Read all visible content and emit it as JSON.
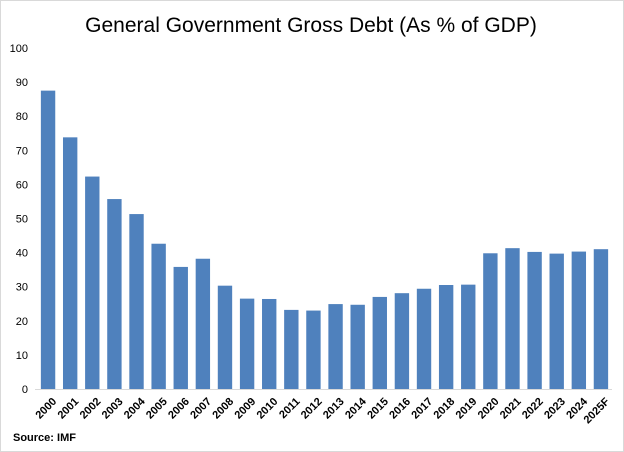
{
  "chart_data": {
    "type": "bar",
    "title": "General Government Gross Debt (As % of GDP)",
    "source": "Source: IMF",
    "categories": [
      "2000",
      "2001",
      "2002",
      "2003",
      "2004",
      "2005",
      "2006",
      "2007",
      "2008",
      "2009",
      "2010",
      "2011",
      "2012",
      "2013",
      "2014",
      "2015",
      "2016",
      "2017",
      "2018",
      "2019",
      "2020",
      "2021",
      "2022",
      "2023",
      "2024",
      "2025F"
    ],
    "values": [
      87.5,
      73.8,
      62.3,
      55.7,
      51.3,
      42.6,
      35.8,
      38.2,
      30.3,
      26.5,
      26.4,
      23.2,
      23.0,
      24.9,
      24.7,
      27.0,
      28.1,
      29.4,
      30.5,
      30.6,
      39.8,
      41.3,
      40.2,
      39.7,
      40.3,
      41.0
    ],
    "yticks": [
      "0",
      "10",
      "20",
      "30",
      "40",
      "50",
      "60",
      "70",
      "80",
      "90",
      "100"
    ],
    "ylim": [
      0,
      100
    ],
    "bar_color": "#4f81bd",
    "grid": false,
    "legend": "none"
  }
}
